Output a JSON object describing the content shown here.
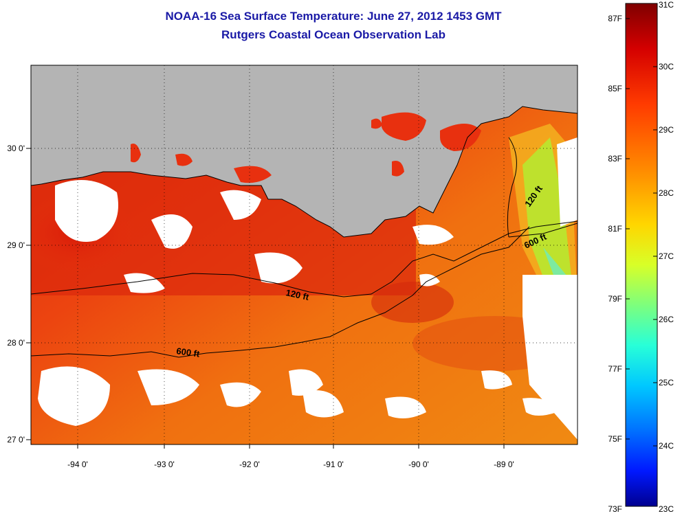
{
  "title_line1": "NOAA-16 Sea Surface Temperature:  June 27, 2012 1453 GMT",
  "title_line2": "Rutgers Coastal Ocean Observation Lab",
  "map": {
    "x_ticks": [
      "-94 0'",
      "-93 0'",
      "-92 0'",
      "-91 0'",
      "-90 0'",
      "-89 0'"
    ],
    "y_ticks": [
      "30 0'",
      "29 0'",
      "28 0'",
      "27 0'"
    ],
    "contour_labels": [
      {
        "text": "120 ft",
        "id": "contour-label-120-west"
      },
      {
        "text": "600 ft",
        "id": "contour-label-600-west"
      },
      {
        "text": "120 ft",
        "id": "contour-label-120-east"
      },
      {
        "text": "600 ft",
        "id": "contour-label-600-east"
      }
    ],
    "colors": {
      "land": "#b4b4b4",
      "cloud": "#ffffff",
      "warm_water": "#e8300f",
      "hot_water": "#c00000",
      "mid_water": "#f07a10",
      "cool_water": "#b8e830"
    }
  },
  "colorbar": {
    "fahrenheit_labels": [
      "87F",
      "85F",
      "83F",
      "81F",
      "79F",
      "77F",
      "75F",
      "73F"
    ],
    "celsius_labels": [
      "31C",
      "30C",
      "29C",
      "28C",
      "27C",
      "26C",
      "25C",
      "24C",
      "23C"
    ],
    "range_c": [
      23,
      31
    ],
    "colors_top_to_bottom": [
      "#7f0000",
      "#d40000",
      "#ff3b00",
      "#ff8a00",
      "#ffd600",
      "#d8ff28",
      "#7dff7d",
      "#28ffd8",
      "#00c8ff",
      "#0070ff",
      "#0018ff",
      "#00008f"
    ]
  }
}
